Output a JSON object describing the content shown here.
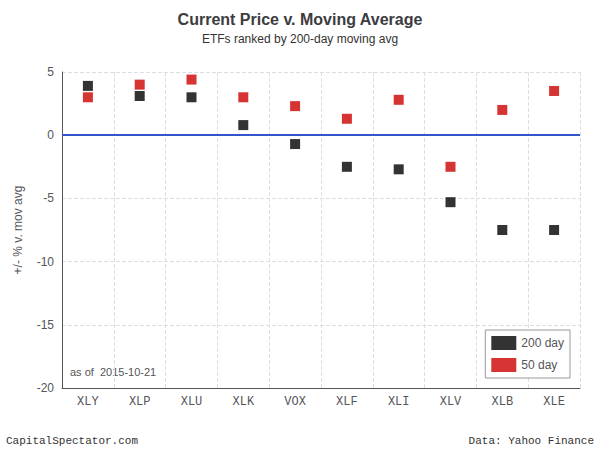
{
  "chart_data": {
    "type": "scatter",
    "title": "Current Price v. Moving Average",
    "subtitle": "ETFs ranked by 200-day moving avg",
    "ylabel": "+/- % v. mov avg",
    "categories": [
      "XLY",
      "XLP",
      "XLU",
      "XLK",
      "VOX",
      "XLF",
      "XLI",
      "XLV",
      "XLB",
      "XLE"
    ],
    "series": [
      {
        "name": "200 day",
        "color": "#000000",
        "marker": "square",
        "values": [
          3.9,
          3.1,
          3.0,
          0.8,
          -0.7,
          -2.5,
          -2.7,
          -5.3,
          -7.5,
          -7.5
        ]
      },
      {
        "name": "50 day",
        "color": "#cc0000",
        "marker": "square",
        "values": [
          3.0,
          4.0,
          4.4,
          3.0,
          2.3,
          1.3,
          2.8,
          -2.5,
          2.0,
          3.5
        ]
      }
    ],
    "reference_line": {
      "y": 0,
      "color": "#3355cc"
    },
    "ylim": [
      -20,
      5
    ],
    "yticks": [
      -20,
      -15,
      -10,
      -5,
      0,
      5
    ],
    "grid": true,
    "legend": "lower right",
    "annotations": [
      "as of  2015-10-21",
      "CapitalSpectator.com",
      "Data: Yahoo Finance"
    ]
  }
}
